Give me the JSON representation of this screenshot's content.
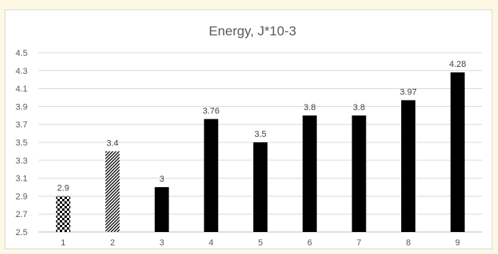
{
  "chart_data": {
    "type": "bar",
    "title": "Energy, J*10-3",
    "xlabel": "",
    "ylabel": "",
    "categories": [
      "1",
      "2",
      "3",
      "4",
      "5",
      "6",
      "7",
      "8",
      "9"
    ],
    "values": [
      2.9,
      3.4,
      3,
      3.76,
      3.5,
      3.8,
      3.8,
      3.97,
      4.28
    ],
    "value_labels": [
      "2.9",
      "3.4",
      "3",
      "3.76",
      "3.5",
      "3.8",
      "3.8",
      "3.97",
      "4.28"
    ],
    "bar_patterns": [
      "checker",
      "diagonal-hatch",
      "solid",
      "solid",
      "solid",
      "solid",
      "solid",
      "solid",
      "solid"
    ],
    "ylim": [
      2.5,
      4.5
    ],
    "yticks": [
      "2.5",
      "2.7",
      "2.9",
      "3.1",
      "3.3",
      "3.5",
      "3.7",
      "3.9",
      "4.1",
      "4.3",
      "4.5"
    ],
    "grid": true,
    "legend": "none",
    "colors": {
      "bar": "#000000",
      "grid": "#d9d9d9",
      "text": "#595959",
      "background": "#fdf8e4"
    }
  }
}
